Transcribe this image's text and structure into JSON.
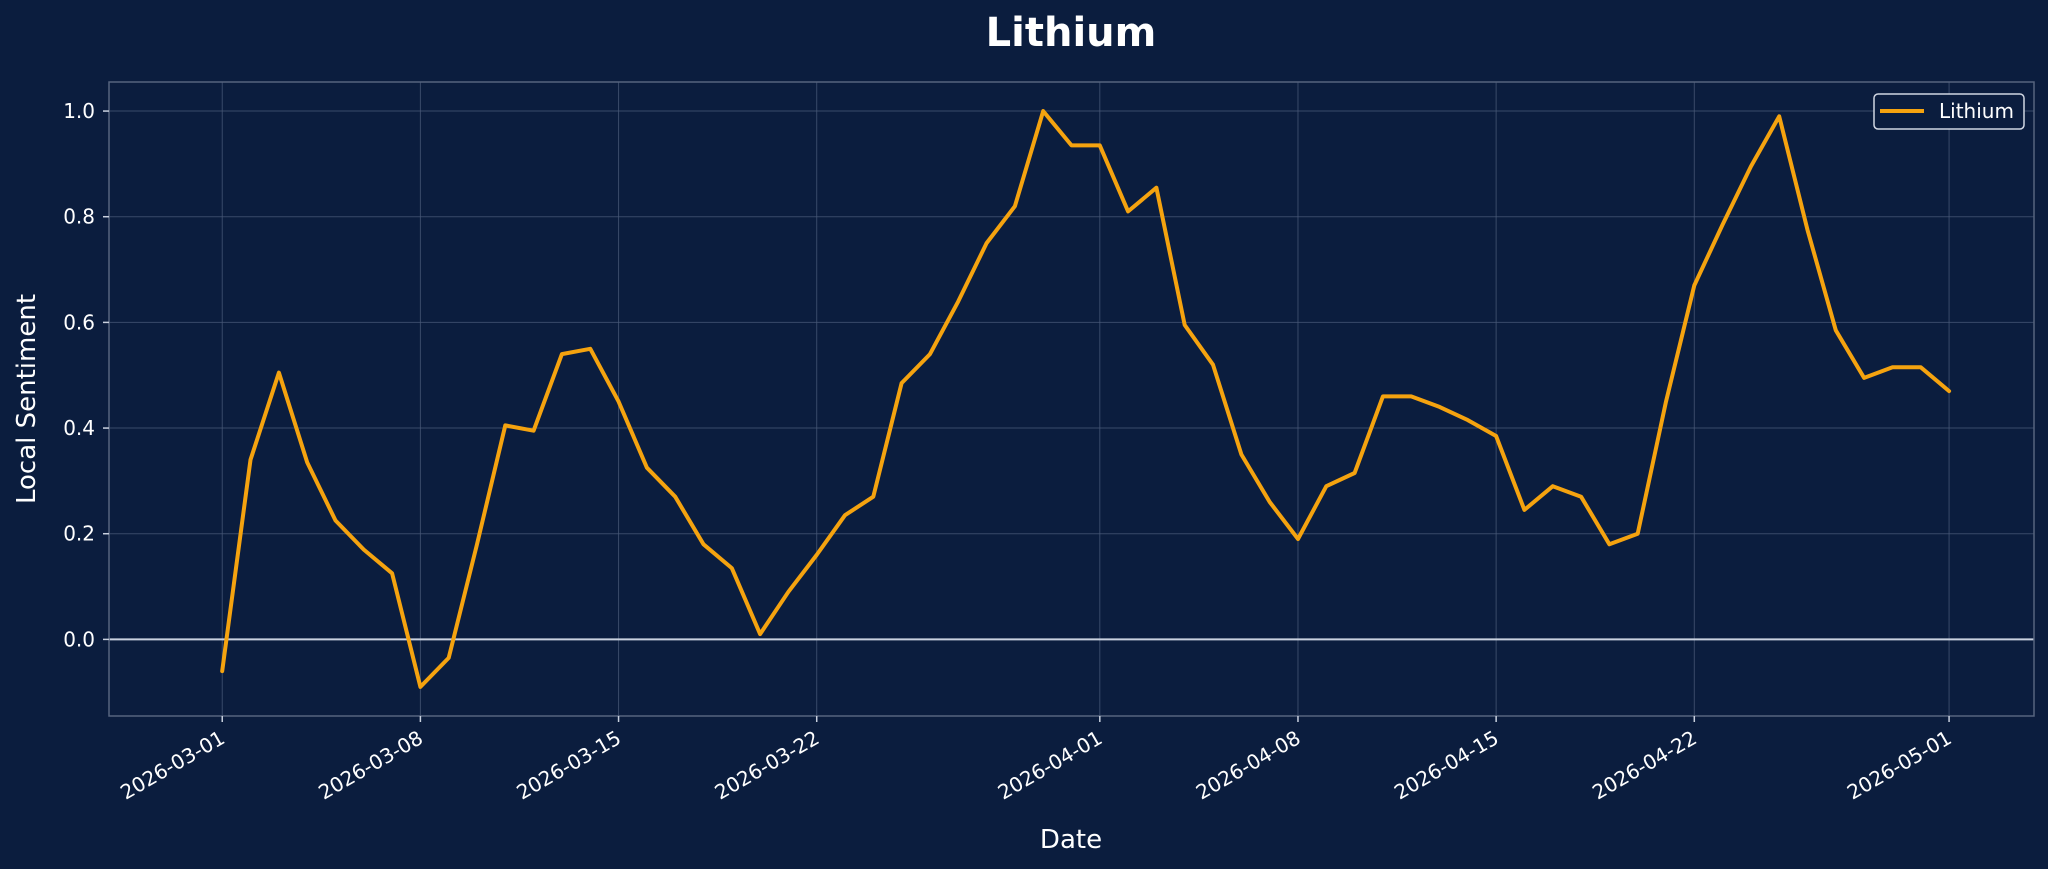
{
  "chart_data": {
    "type": "line",
    "title": "Lithium",
    "xlabel": "Date",
    "ylabel": "Local Sentiment",
    "xlim": [
      "2026-02-25",
      "2026-05-04"
    ],
    "ylim": [
      -0.145,
      1.055
    ],
    "x_ticks": [
      "2026-03-01",
      "2026-03-08",
      "2026-03-15",
      "2026-03-22",
      "2026-04-01",
      "2026-04-08",
      "2026-04-15",
      "2026-04-22",
      "2026-05-01"
    ],
    "y_ticks": [
      0.0,
      0.2,
      0.4,
      0.6,
      0.8,
      1.0
    ],
    "y_tick_labels": [
      "0.0",
      "0.2",
      "0.4",
      "0.6",
      "0.8",
      "1.0"
    ],
    "grid": true,
    "zero_line": true,
    "legend_position": "top-right",
    "series": [
      {
        "name": "Lithium",
        "color": "#f5a30f",
        "x": [
          "2026-03-01",
          "2026-03-02",
          "2026-03-03",
          "2026-03-04",
          "2026-03-05",
          "2026-03-06",
          "2026-03-07",
          "2026-03-08",
          "2026-03-09",
          "2026-03-10",
          "2026-03-11",
          "2026-03-12",
          "2026-03-13",
          "2026-03-14",
          "2026-03-15",
          "2026-03-16",
          "2026-03-17",
          "2026-03-18",
          "2026-03-19",
          "2026-03-20",
          "2026-03-21",
          "2026-03-22",
          "2026-03-23",
          "2026-03-24",
          "2026-03-25",
          "2026-03-26",
          "2026-03-27",
          "2026-03-28",
          "2026-03-29",
          "2026-03-30",
          "2026-03-31",
          "2026-04-01",
          "2026-04-02",
          "2026-04-03",
          "2026-04-04",
          "2026-04-05",
          "2026-04-06",
          "2026-04-07",
          "2026-04-08",
          "2026-04-09",
          "2026-04-10",
          "2026-04-11",
          "2026-04-12",
          "2026-04-13",
          "2026-04-14",
          "2026-04-15",
          "2026-04-16",
          "2026-04-17",
          "2026-04-18",
          "2026-04-19",
          "2026-04-20",
          "2026-04-21",
          "2026-04-22",
          "2026-04-23",
          "2026-04-24",
          "2026-04-25",
          "2026-04-26",
          "2026-04-27",
          "2026-04-28",
          "2026-04-29",
          "2026-04-30",
          "2026-05-01"
        ],
        "values": [
          -0.06,
          0.34,
          0.505,
          0.335,
          0.225,
          0.17,
          0.125,
          -0.09,
          -0.035,
          0.18,
          0.405,
          0.395,
          0.54,
          0.55,
          0.45,
          0.325,
          0.27,
          0.18,
          0.135,
          0.01,
          0.09,
          0.16,
          0.235,
          0.27,
          0.485,
          0.54,
          0.64,
          0.75,
          0.82,
          1.0,
          0.935,
          0.935,
          0.81,
          0.855,
          0.595,
          0.52,
          0.35,
          0.26,
          0.19,
          0.29,
          0.315,
          0.46,
          0.46,
          0.44,
          0.415,
          0.385,
          0.245,
          0.29,
          0.27,
          0.18,
          0.2,
          0.45,
          0.67,
          0.785,
          0.895,
          0.99,
          0.775,
          0.585,
          0.495,
          0.515,
          0.515,
          0.47
        ]
      }
    ]
  },
  "colors": {
    "background": "#0b1d3e",
    "grid": "#4a5a78",
    "zero_line": "#c9d1df",
    "text": "#ffffff"
  }
}
